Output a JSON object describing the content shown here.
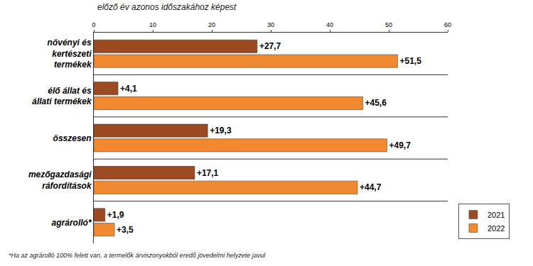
{
  "chart_data": {
    "type": "bar",
    "orientation": "horizontal",
    "subtitle": "előző év azonos időszakához képest",
    "categories": [
      "növényi és kertészeti termékek",
      "élő állat és állati termékek",
      "összesen",
      "mezőgazdasági ráfordítások",
      "agrárolló*"
    ],
    "series": [
      {
        "name": "2021",
        "color": "#9b4a22",
        "values": [
          27.7,
          4.1,
          19.3,
          17.1,
          1.9
        ],
        "value_labels": [
          "+27,7",
          "+4,1",
          "+19,3",
          "+17,1",
          "+1,9"
        ]
      },
      {
        "name": "2022",
        "color": "#f0892f",
        "values": [
          51.5,
          45.6,
          49.7,
          44.7,
          3.5
        ],
        "value_labels": [
          "+51,5",
          "+45,6",
          "+49,7",
          "+44,7",
          "+3,5"
        ]
      }
    ],
    "xlim": [
      0,
      60
    ],
    "xticks": [
      0,
      10,
      20,
      30,
      40,
      50,
      60
    ],
    "grid": false,
    "legend": "bottom right",
    "data_labels": true,
    "annotations": [
      "*Ha az agrárolló 100% felett van, a termelők árviszonyokból eredő jövedelmi helyzete javul"
    ]
  }
}
